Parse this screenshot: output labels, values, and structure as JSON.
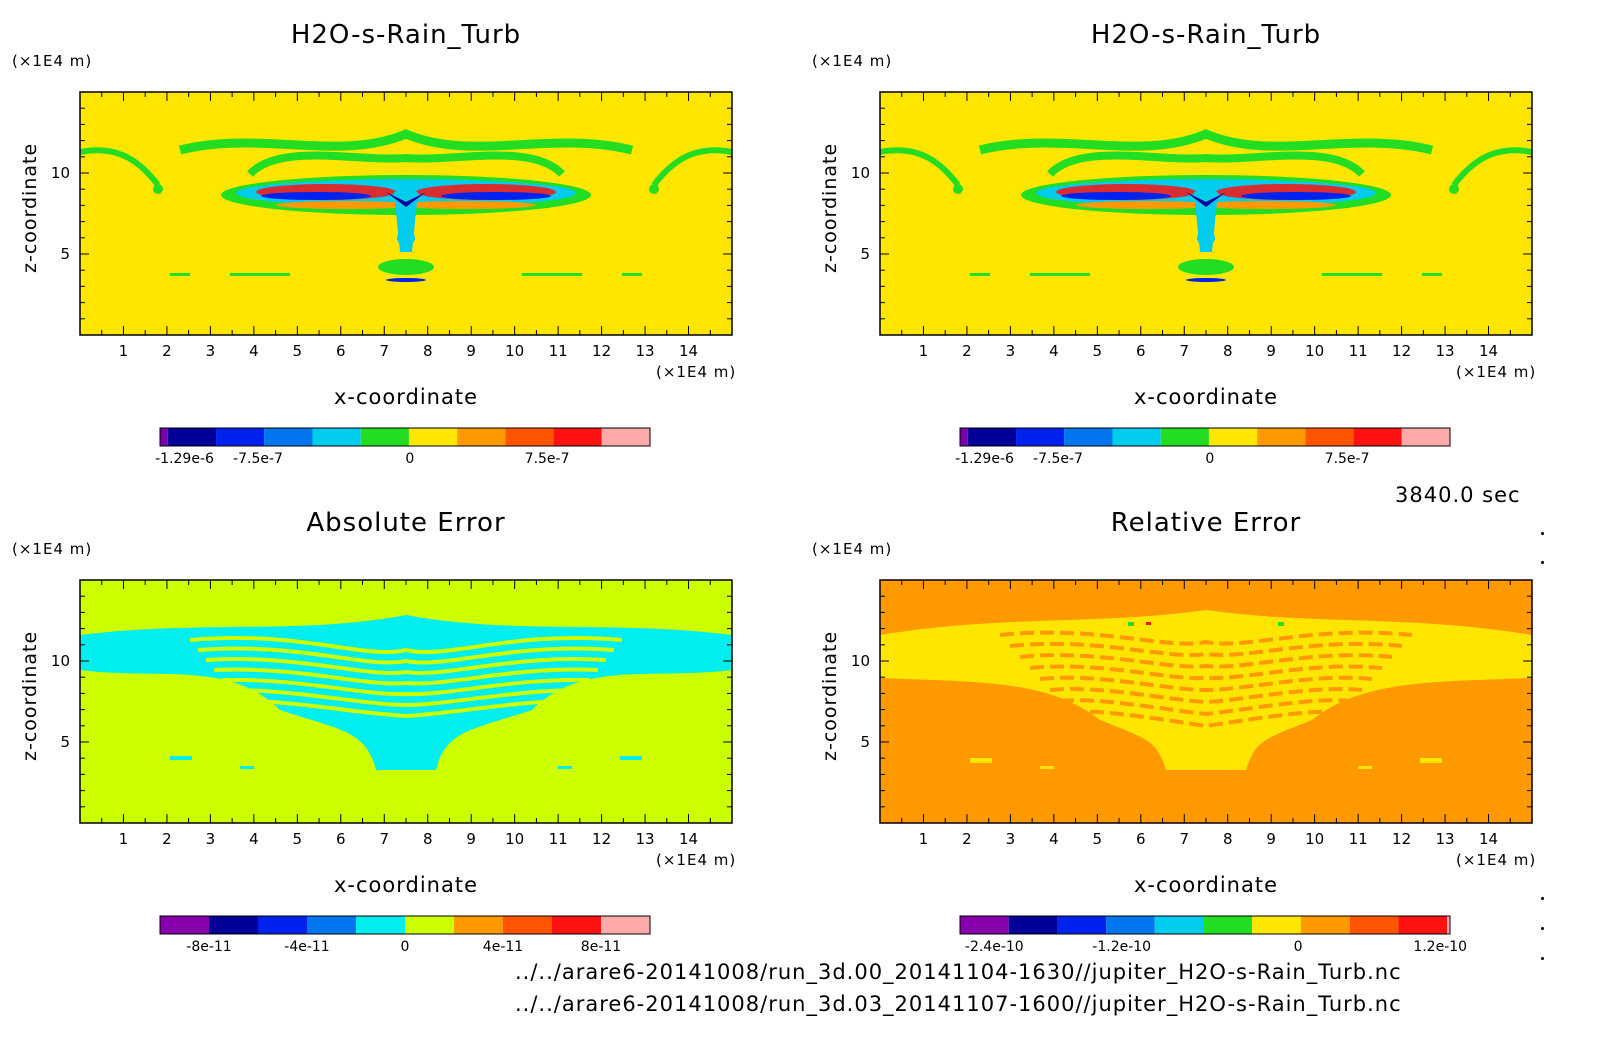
{
  "chart_data": [
    {
      "type": "heatmap",
      "title": "H2O-s-Rain_Turb",
      "xlabel": "x-coordinate",
      "ylabel": "z-coordinate",
      "xunit": "(×1E4 m)",
      "yunit": "(×1E4 m)",
      "xlim": [
        0,
        15
      ],
      "ylim": [
        0,
        15
      ],
      "xticks": [
        "1",
        "2",
        "3",
        "4",
        "5",
        "6",
        "7",
        "8",
        "9",
        "10",
        "11",
        "12",
        "13",
        "14"
      ],
      "yticks": [
        "5",
        "10"
      ],
      "background_color": "#FFE600",
      "colorbar": {
        "colors": [
          "#7700aa",
          "#000099",
          "#0022ee",
          "#0077ee",
          "#00ccee",
          "#22dd22",
          "#ffe600",
          "#ff9900",
          "#ff5500",
          "#ff1111",
          "#ffaaaa"
        ],
        "tick_labels": [
          "-1.29e-6",
          "-7.5e-7",
          "0",
          "7.5e-7"
        ]
      }
    },
    {
      "type": "heatmap",
      "title": "H2O-s-Rain_Turb",
      "xlabel": "x-coordinate",
      "ylabel": "z-coordinate",
      "xunit": "(×1E4 m)",
      "yunit": "(×1E4 m)",
      "xlim": [
        0,
        15
      ],
      "ylim": [
        0,
        15
      ],
      "xticks": [
        "1",
        "2",
        "3",
        "4",
        "5",
        "6",
        "7",
        "8",
        "9",
        "10",
        "11",
        "12",
        "13",
        "14"
      ],
      "yticks": [
        "5",
        "10"
      ],
      "background_color": "#FFE600",
      "colorbar": {
        "colors": [
          "#7700aa",
          "#000099",
          "#0022ee",
          "#0077ee",
          "#00ccee",
          "#22dd22",
          "#ffe600",
          "#ff9900",
          "#ff5500",
          "#ff1111",
          "#ffaaaa"
        ],
        "tick_labels": [
          "-1.29e-6",
          "-7.5e-7",
          "0",
          "7.5e-7"
        ]
      }
    },
    {
      "type": "heatmap",
      "title": "Absolute Error",
      "xlabel": "x-coordinate",
      "ylabel": "z-coordinate",
      "xunit": "(×1E4 m)",
      "yunit": "(×1E4 m)",
      "xlim": [
        0,
        15
      ],
      "ylim": [
        0,
        15
      ],
      "xticks": [
        "1",
        "2",
        "3",
        "4",
        "5",
        "6",
        "7",
        "8",
        "9",
        "10",
        "11",
        "12",
        "13",
        "14"
      ],
      "yticks": [
        "5",
        "10"
      ],
      "background_color": "#CCFF00",
      "colorbar": {
        "colors": [
          "#8800aa",
          "#000099",
          "#0022ee",
          "#0077ee",
          "#00eeee",
          "#ccff00",
          "#ff9900",
          "#ff5500",
          "#ff1111",
          "#ffaaaa"
        ],
        "tick_labels": [
          "-8e-11",
          "-4e-11",
          "0",
          "4e-11",
          "8e-11"
        ]
      }
    },
    {
      "type": "heatmap",
      "title": "Relative Error",
      "xlabel": "x-coordinate",
      "ylabel": "z-coordinate",
      "xunit": "(×1E4 m)",
      "yunit": "(×1E4 m)",
      "xlim": [
        0,
        15
      ],
      "ylim": [
        0,
        15
      ],
      "xticks": [
        "1",
        "2",
        "3",
        "4",
        "5",
        "6",
        "7",
        "8",
        "9",
        "10",
        "11",
        "12",
        "13",
        "14"
      ],
      "yticks": [
        "5",
        "10"
      ],
      "background_color": "#FF9900",
      "colorbar": {
        "colors": [
          "#8800aa",
          "#000099",
          "#0022ee",
          "#0077ee",
          "#00ccee",
          "#22dd22",
          "#ffe600",
          "#ff9900",
          "#ff5500",
          "#ff1111",
          "#ffaaaa"
        ],
        "tick_labels": [
          "-2.4e-10",
          "-1.2e-10",
          "0",
          "1.2e-10"
        ]
      }
    }
  ],
  "timestamp": "3840.0 sec",
  "files": [
    "../../arare6-20141008/run_3d.00_20141104-1630//jupiter_H2O-s-Rain_Turb.nc",
    "../../arare6-20141008/run_3d.03_20141107-1600//jupiter_H2O-s-Rain_Turb.nc"
  ]
}
